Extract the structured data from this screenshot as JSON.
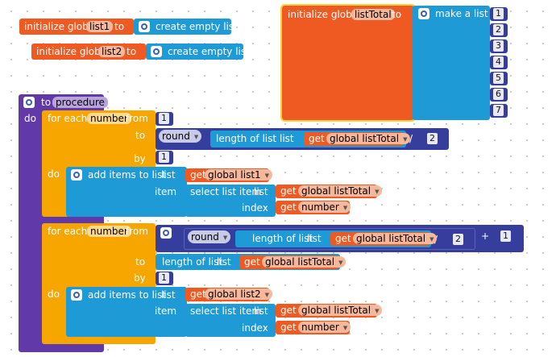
{
  "globals": [
    {
      "init": "initialize global",
      "name": "list1",
      "to": "to",
      "value": "create empty list"
    },
    {
      "init": "initialize global",
      "name": "list2",
      "to": "to",
      "value": "create empty list"
    },
    {
      "init": "initialize global",
      "name": "listTotal",
      "to": "to",
      "value": "make a list",
      "items": [
        "1",
        "2",
        "3",
        "4",
        "5",
        "6",
        "7"
      ]
    }
  ],
  "procedure": {
    "to": "to",
    "name": "procedure",
    "do": "do",
    "loop1": {
      "for_each": "for each",
      "var": "number",
      "from": "from",
      "from_val": "1",
      "to": "to",
      "round": "round",
      "length_of_list": "length of list",
      "list_word": "list",
      "get": "get",
      "get_target": "global listTotal",
      "divide": "/",
      "divisor": "2",
      "by": "by",
      "by_val": "1",
      "do": "do",
      "add_items": "add items to list",
      "list_label": "list",
      "list_target": "global list1",
      "item_label": "item",
      "select_item": "select list item",
      "select_list_label": "list",
      "select_list_target": "global listTotal",
      "index_label": "index",
      "index_target": "number"
    },
    "loop2": {
      "for_each": "for each",
      "var": "number",
      "from": "from",
      "round": "round",
      "length_of_list": "length of list",
      "list_word": "list",
      "get": "get",
      "get_target": "global listTotal",
      "divide": "/",
      "divisor": "2",
      "plus": "+",
      "plus_val": "1",
      "to": "to",
      "to_length": "length of list",
      "to_list_word": "list",
      "to_target": "global listTotal",
      "by": "by",
      "by_val": "1",
      "do": "do",
      "add_items": "add items to list",
      "list_label": "list",
      "list_target": "global list2",
      "item_label": "item",
      "select_item": "select list item",
      "select_list_label": "list",
      "select_list_target": "global listTotal",
      "index_label": "index",
      "index_target": "number"
    }
  },
  "colors": {
    "variables": "#ef5a23",
    "control": "#f7a600",
    "lists": "#1e9ad6",
    "math": "#353e9c",
    "procedures": "#6239a9"
  }
}
